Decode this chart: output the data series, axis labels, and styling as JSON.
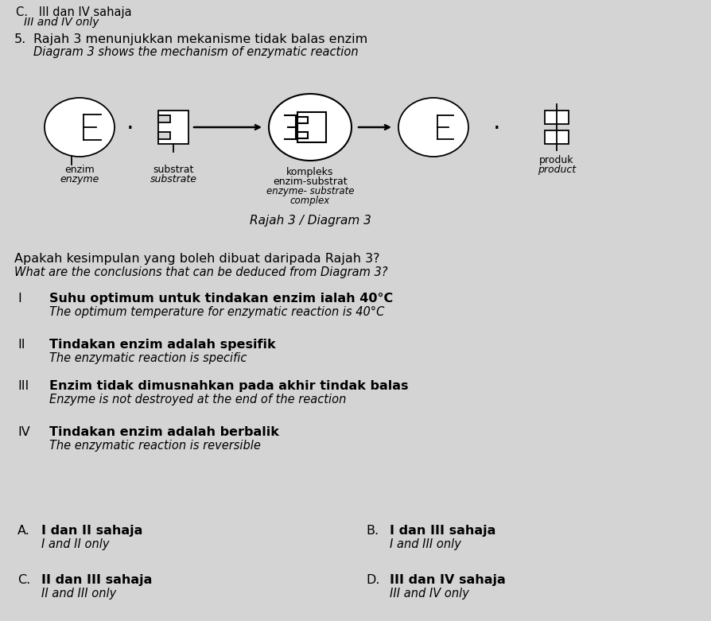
{
  "bg_color": "#d4d4d4",
  "title_top": "C.   III dan IV sahaja",
  "title_top_italic": "III and IV only",
  "q_number": "5.",
  "q_malay": "Rajah 3 menunjukkan mekanisme tidak balas enzim",
  "q_english": "Diagram 3 shows the mechanism of enzymatic reaction",
  "diagram_caption": "Rajah 3 / Diagram 3",
  "enzyme_label_malay": "enzim",
  "enzyme_label_english": "enzyme",
  "substrate_label_malay": "substrat",
  "substrate_label_english": "substrate",
  "complex_label_line1": "kompleks",
  "complex_label_line2": "enzim-substrat",
  "complex_label_line3": "enzyme- substrate",
  "complex_label_line4": "complex",
  "product_label_malay": "produk",
  "product_label_english": "product",
  "question_malay": "Apakah kesimpulan yang boleh dibuat daripada Rajah 3?",
  "question_english": "What are the conclusions that can be deduced from Diagram 3?",
  "statements": [
    [
      "I",
      "Suhu optimum untuk tindakan enzim ialah 40°C",
      "The optimum temperature for enzymatic reaction is 40°C"
    ],
    [
      "II",
      "Tindakan enzim adalah spesifik",
      "The enzymatic reaction is specific"
    ],
    [
      "III",
      "Enzim tidak dimusnahkan pada akhir tindak balas",
      "Enzyme is not destroyed at the end of the reaction"
    ],
    [
      "IV",
      "Tindakan enzim adalah berbalik",
      "The enzymatic reaction is reversible"
    ]
  ],
  "options": [
    [
      "A.",
      "I dan II sahaja",
      "I and II only"
    ],
    [
      "B.",
      "I dan III sahaja",
      "I and III only"
    ],
    [
      "C.",
      "II dan III sahaja",
      "II and III only"
    ],
    [
      "D.",
      "III dan IV sahaja",
      "III and IV only"
    ]
  ]
}
